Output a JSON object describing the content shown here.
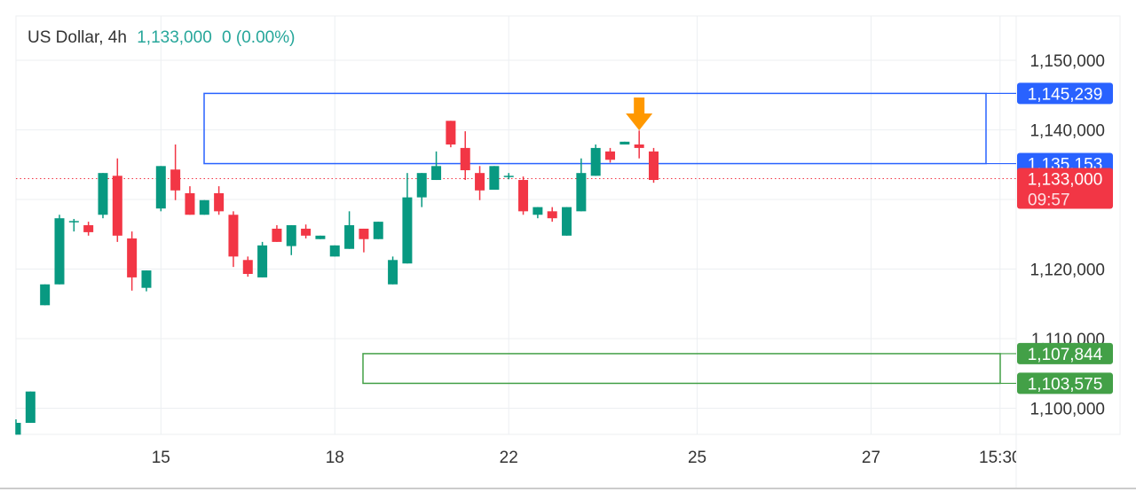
{
  "header": {
    "symbol": "US Dollar, 4h",
    "last_price": "1,133,000",
    "change": "0 (0.00%)"
  },
  "colors": {
    "up": "#089981",
    "down": "#f23645",
    "resistance_zone": "#2962ff",
    "support_zone": "#43a047",
    "marker_arrow": "#ff9800",
    "last_price_line": "#f23645"
  },
  "chart_data": {
    "type": "candlestick",
    "ylim": [
      1093000,
      1153000
    ],
    "y_ticks": [
      1100000,
      1110000,
      1120000,
      1140000,
      1150000
    ],
    "y_tick_labels": [
      "1,100,000",
      "1,110,000",
      "1,120,000",
      "1,140,000",
      "1,150,000"
    ],
    "x_tick_labels": [
      "15",
      "18",
      "22",
      "25",
      "27",
      "15:30"
    ],
    "grid": true,
    "candle_format": [
      "open",
      "close",
      "high",
      "low"
    ],
    "candles": [
      [
        1096200,
        1097900,
        1098400,
        1096200
      ],
      [
        1097900,
        1102400,
        1102400,
        1097900
      ],
      [
        1114800,
        1117800,
        1117800,
        1114800
      ],
      [
        1117800,
        1127300,
        1127800,
        1117800
      ],
      [
        1126900,
        1126900,
        1127200,
        1125400
      ],
      [
        1126300,
        1125300,
        1126800,
        1124800
      ],
      [
        1127800,
        1133800,
        1133800,
        1127300
      ],
      [
        1133400,
        1124800,
        1135900,
        1123900
      ],
      [
        1124400,
        1118800,
        1125400,
        1116900
      ],
      [
        1117300,
        1119800,
        1119800,
        1116800
      ],
      [
        1128700,
        1134800,
        1134800,
        1128300
      ],
      [
        1134300,
        1131300,
        1137900,
        1129900
      ],
      [
        1130900,
        1127800,
        1131900,
        1127800
      ],
      [
        1127800,
        1129900,
        1129900,
        1127800
      ],
      [
        1130900,
        1128300,
        1131900,
        1127800
      ],
      [
        1127800,
        1121800,
        1128300,
        1120300
      ],
      [
        1121300,
        1119300,
        1121800,
        1118900
      ],
      [
        1118800,
        1123400,
        1123900,
        1118800
      ],
      [
        1125800,
        1123900,
        1126300,
        1123900
      ],
      [
        1123300,
        1126300,
        1126300,
        1122000
      ],
      [
        1125800,
        1124800,
        1126400,
        1124400
      ],
      [
        1124300,
        1124800,
        1124800,
        1124300
      ],
      [
        1121800,
        1123400,
        1123400,
        1121800
      ],
      [
        1122900,
        1126300,
        1128300,
        1122900
      ],
      [
        1125800,
        1124300,
        1125800,
        1122400
      ],
      [
        1124300,
        1126800,
        1126800,
        1124300
      ],
      [
        1117800,
        1121300,
        1121800,
        1117800
      ],
      [
        1120800,
        1130300,
        1133800,
        1120800
      ],
      [
        1130300,
        1133800,
        1133800,
        1128900
      ],
      [
        1132800,
        1134800,
        1136900,
        1132800
      ],
      [
        1141300,
        1137900,
        1141300,
        1137500
      ],
      [
        1137400,
        1134200,
        1139800,
        1132800
      ],
      [
        1133800,
        1131300,
        1134800,
        1129900
      ],
      [
        1131400,
        1134800,
        1134800,
        1131400
      ],
      [
        1133400,
        1133400,
        1133800,
        1132900
      ],
      [
        1132800,
        1128300,
        1133300,
        1127800
      ],
      [
        1127800,
        1128900,
        1128900,
        1127300
      ],
      [
        1128300,
        1127300,
        1128900,
        1126800
      ],
      [
        1124800,
        1128900,
        1128900,
        1124800
      ],
      [
        1128300,
        1133800,
        1135900,
        1128300
      ],
      [
        1133400,
        1137400,
        1137900,
        1133400
      ],
      [
        1136900,
        1135700,
        1137400,
        1135300
      ],
      [
        1137900,
        1138300,
        1138300,
        1137900
      ],
      [
        1137900,
        1137400,
        1139900,
        1135900
      ],
      [
        1136900,
        1132800,
        1137400,
        1132400
      ]
    ],
    "zones": [
      {
        "kind": "resistance",
        "top": 1145239,
        "bottom": 1135153,
        "top_label": "1,145,239",
        "bottom_label": "1,135,153"
      },
      {
        "kind": "support",
        "top": 1107844,
        "bottom": 1103575,
        "top_label": "1,107,844",
        "bottom_label": "1,103,575"
      }
    ],
    "last_price": {
      "value": 1133000,
      "label": "1,133,000",
      "countdown": "09:57"
    },
    "marker": {
      "type": "down-arrow",
      "candle": 43
    }
  }
}
